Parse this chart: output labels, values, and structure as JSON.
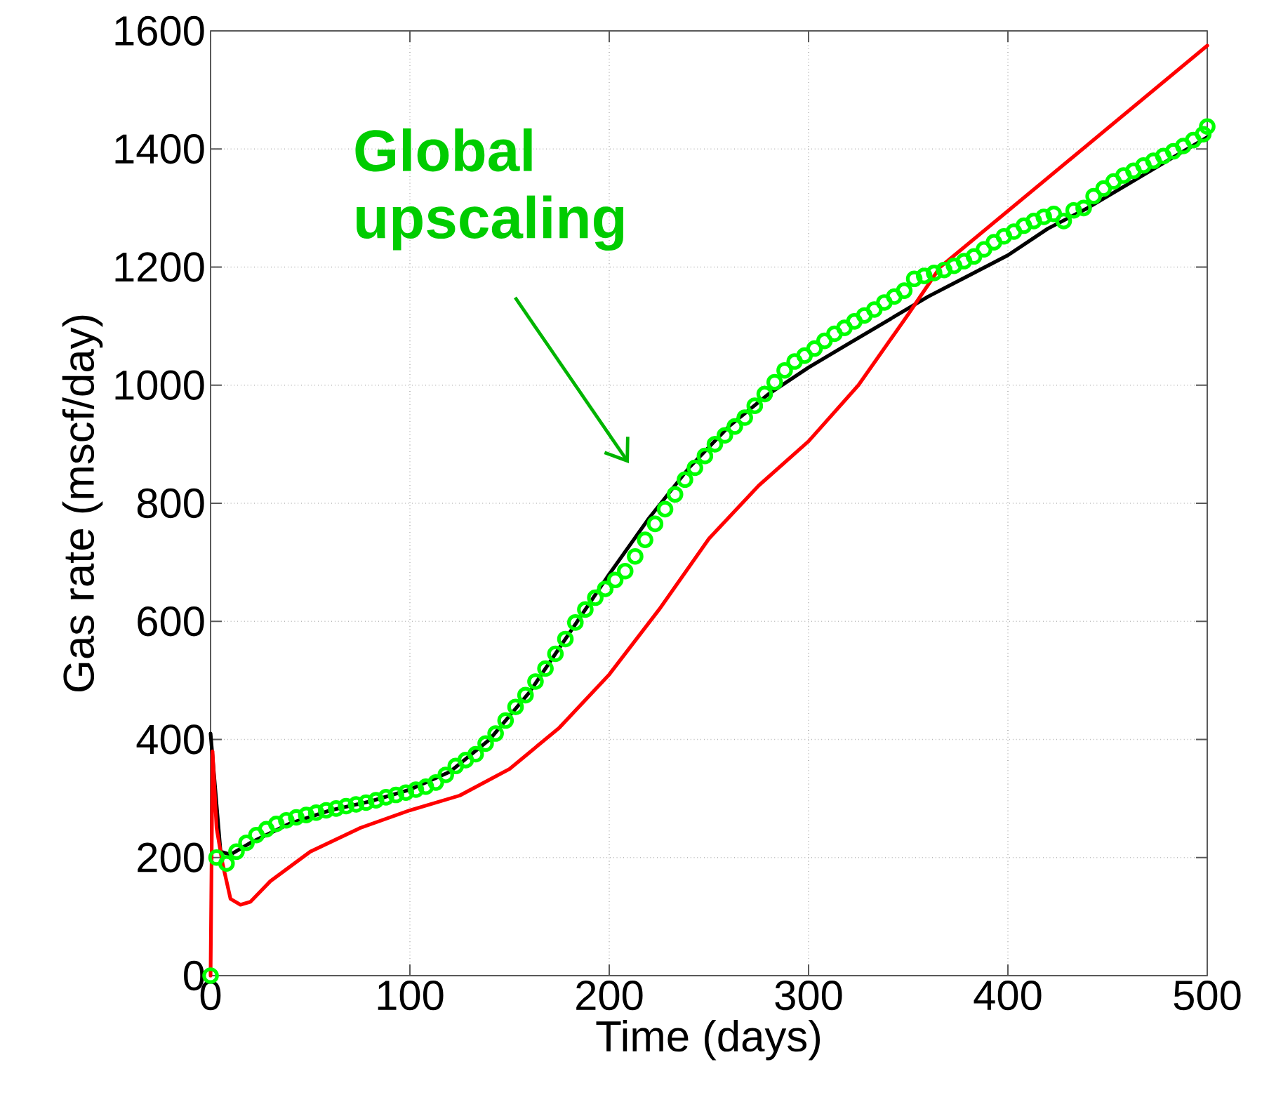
{
  "chart_data": {
    "type": "line",
    "xlabel": "Time (days)",
    "ylabel": "Gas rate (mscf/day)",
    "xlim": [
      0,
      500
    ],
    "ylim": [
      0,
      1600
    ],
    "xticks": [
      0,
      100,
      200,
      300,
      400,
      500
    ],
    "yticks": [
      0,
      200,
      400,
      600,
      800,
      1000,
      1200,
      1400,
      1600
    ],
    "grid": true,
    "annotations": [
      "Global upscaling"
    ],
    "series": [
      {
        "color": "#000000",
        "marker": "none",
        "x": [
          0,
          5,
          10,
          20,
          40,
          60,
          80,
          100,
          120,
          140,
          160,
          180,
          200,
          220,
          240,
          260,
          280,
          300,
          320,
          340,
          360,
          380,
          400,
          420,
          440,
          460,
          480,
          500
        ],
        "values": [
          410,
          210,
          205,
          225,
          258,
          280,
          295,
          315,
          345,
          400,
          480,
          580,
          680,
          775,
          860,
          930,
          985,
          1030,
          1070,
          1110,
          1150,
          1185,
          1220,
          1265,
          1300,
          1340,
          1380,
          1420
        ]
      },
      {
        "color": "#ff0000",
        "marker": "none",
        "x": [
          0,
          1,
          3,
          6,
          10,
          15,
          20,
          30,
          50,
          75,
          100,
          125,
          150,
          175,
          200,
          225,
          250,
          275,
          300,
          325,
          350,
          366,
          400,
          450,
          500
        ],
        "values": [
          0,
          380,
          250,
          190,
          130,
          120,
          125,
          160,
          210,
          250,
          280,
          305,
          350,
          420,
          510,
          620,
          740,
          830,
          905,
          1000,
          1120,
          1200,
          1295,
          1435,
          1575
        ]
      },
      {
        "type": "scatter",
        "color": "#00ff00",
        "marker": "circle",
        "x": [
          0,
          3,
          8,
          13,
          18,
          23,
          28,
          33,
          38,
          43,
          48,
          53,
          58,
          63,
          68,
          73,
          78,
          83,
          88,
          93,
          98,
          103,
          108,
          113,
          118,
          123,
          128,
          133,
          138,
          143,
          148,
          153,
          158,
          163,
          168,
          173,
          178,
          183,
          188,
          193,
          198,
          203,
          208,
          213,
          218,
          223,
          228,
          233,
          238,
          243,
          248,
          253,
          258,
          263,
          268,
          273,
          278,
          283,
          288,
          293,
          298,
          303,
          308,
          313,
          318,
          323,
          328,
          333,
          338,
          343,
          348,
          353,
          358,
          363,
          368,
          373,
          378,
          383,
          388,
          393,
          398,
          403,
          408,
          413,
          418,
          423,
          428,
          433,
          438,
          443,
          448,
          453,
          458,
          463,
          468,
          473,
          478,
          483,
          488,
          493,
          498,
          500
        ],
        "values": [
          0,
          200,
          190,
          210,
          225,
          238,
          248,
          257,
          263,
          268,
          272,
          276,
          280,
          283,
          287,
          290,
          293,
          297,
          302,
          306,
          310,
          315,
          320,
          327,
          340,
          355,
          365,
          375,
          393,
          410,
          432,
          455,
          475,
          498,
          520,
          545,
          570,
          598,
          620,
          640,
          655,
          670,
          685,
          710,
          738,
          765,
          790,
          815,
          840,
          860,
          880,
          900,
          915,
          930,
          945,
          965,
          985,
          1005,
          1025,
          1040,
          1050,
          1062,
          1075,
          1087,
          1097,
          1108,
          1118,
          1128,
          1140,
          1150,
          1160,
          1180,
          1185,
          1190,
          1195,
          1202,
          1210,
          1218,
          1230,
          1242,
          1252,
          1260,
          1270,
          1278,
          1285,
          1290,
          1278,
          1296,
          1300,
          1320,
          1333,
          1345,
          1355,
          1363,
          1372,
          1380,
          1388,
          1396,
          1405,
          1415,
          1425,
          1438
        ]
      }
    ]
  }
}
